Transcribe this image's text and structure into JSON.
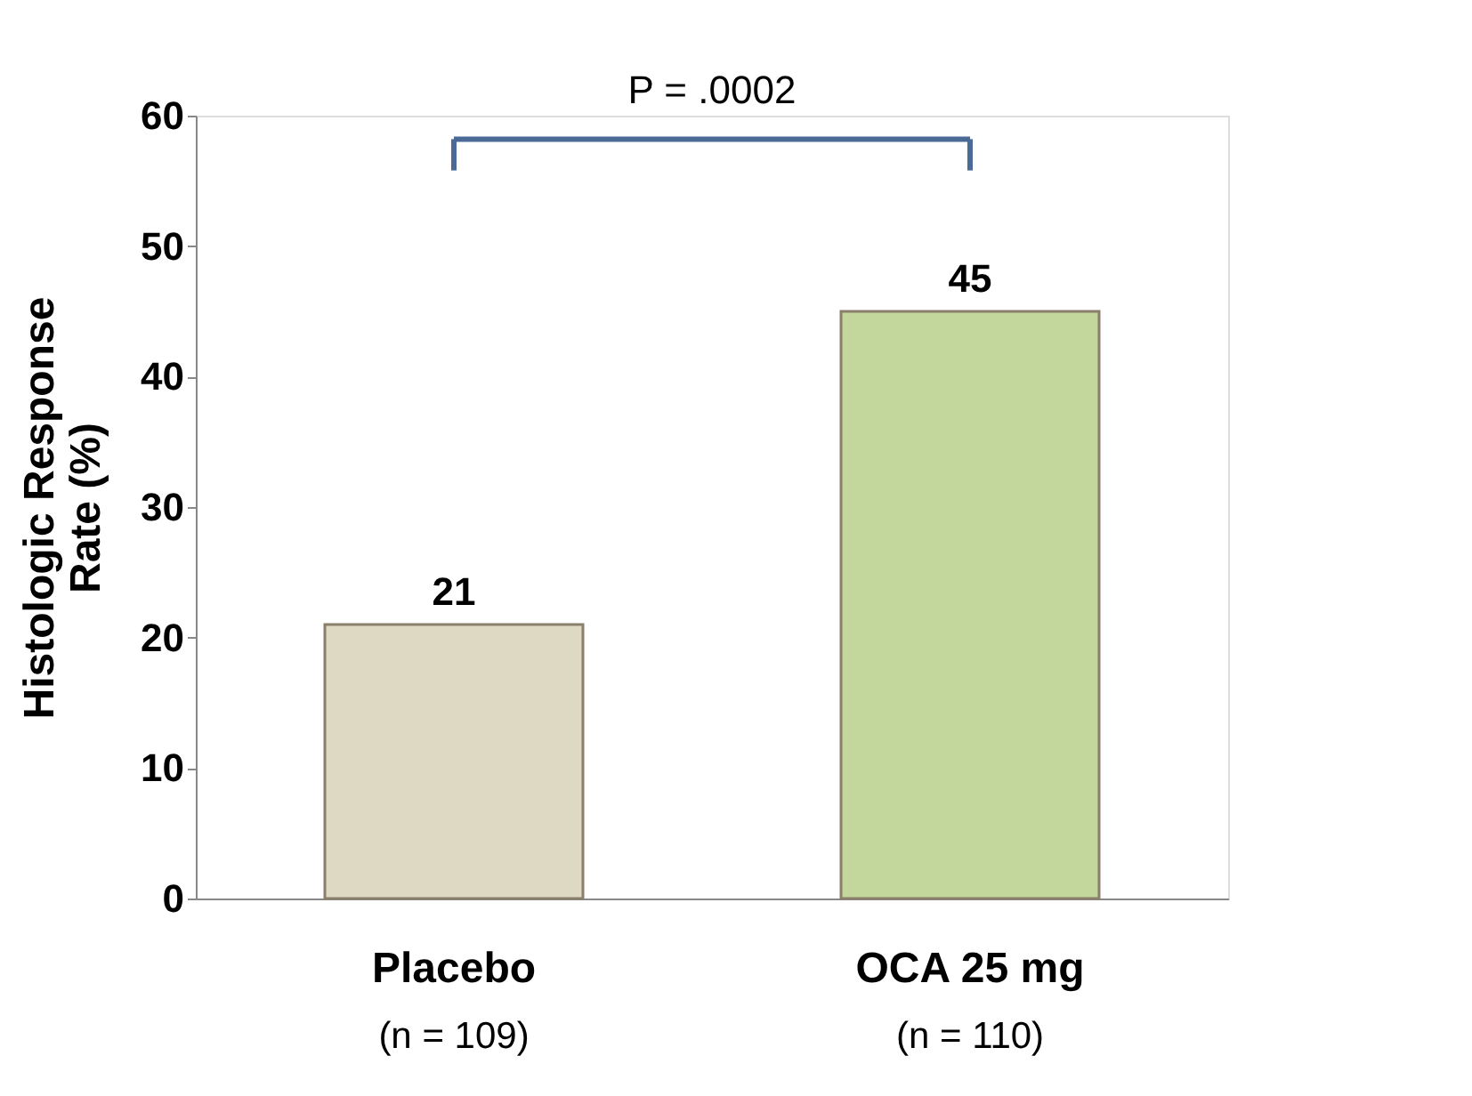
{
  "chart_data": {
    "type": "bar",
    "ylabel": "Histologic Response\nRate (%)",
    "categories": [
      "Placebo\n(n = 109)",
      "OCA 25 mg\n(n = 110)"
    ],
    "values": [
      21,
      45
    ],
    "colors": [
      "#ddd9c3",
      "#c3d69b"
    ],
    "ylim": [
      0,
      60
    ],
    "yticks": [
      0,
      10,
      20,
      30,
      40,
      50,
      60
    ],
    "data_labels": true,
    "grid": false,
    "annotations": [
      "P = .0002"
    ]
  }
}
